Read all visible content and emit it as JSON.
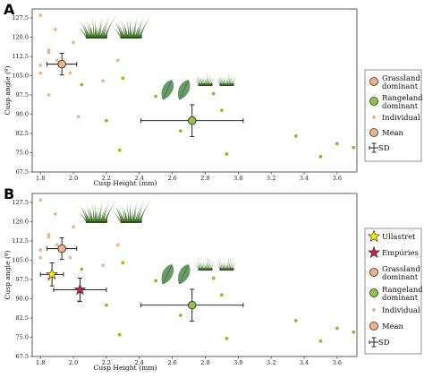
{
  "colors": {
    "grass": "#f2b58e",
    "grass_mean": "#f0b189",
    "range": "#9bb52c",
    "range_mean": "#8dc63f",
    "ullastret": "#ffea00",
    "empuries": "#c8203f",
    "errbar": "#111111",
    "leaf": "#6a9a68",
    "grass_icon": "#3f6b2f"
  },
  "chart_data": [
    {
      "panel": "A",
      "type": "scatter",
      "xlabel": "Cusp Height (mm)",
      "ylabel": "Cusp angle (º)",
      "xlim": [
        1.75,
        3.72
      ],
      "ylim": [
        67.5,
        131
      ],
      "xticks": [
        "1.8",
        "2.0",
        "2.2",
        "2.4",
        "2.6",
        "2.8",
        "3.0",
        "3.2",
        "3.4",
        "3.6"
      ],
      "yticks": [
        "67.5",
        "75.0",
        "82.5",
        "90.0",
        "97.5",
        "105.0",
        "112.5",
        "120.0",
        "127.5"
      ],
      "series": [
        {
          "name": "Individual",
          "group": "grassland",
          "points": [
            [
              1.8,
              128.5
            ],
            [
              1.8,
              109
            ],
            [
              1.8,
              106
            ],
            [
              1.85,
              115
            ],
            [
              1.85,
              114
            ],
            [
              1.85,
              97.5
            ],
            [
              1.89,
              123
            ],
            [
              1.9,
              111
            ],
            [
              1.98,
              106
            ],
            [
              2.0,
              118
            ],
            [
              2.03,
              89
            ],
            [
              2.18,
              103
            ],
            [
              2.27,
              111
            ]
          ]
        },
        {
          "name": "Individual",
          "group": "rangeland",
          "points": [
            [
              2.05,
              101.5
            ],
            [
              2.2,
              87.5
            ],
            [
              2.28,
              76
            ],
            [
              2.3,
              104
            ],
            [
              2.5,
              97
            ],
            [
              2.65,
              83.5
            ],
            [
              2.85,
              98
            ],
            [
              2.9,
              91.5
            ],
            [
              2.93,
              74.5
            ],
            [
              3.35,
              81.5
            ],
            [
              3.5,
              73.5
            ],
            [
              3.6,
              78.5
            ],
            [
              3.7,
              77
            ]
          ]
        },
        {
          "name": "Mean",
          "group": "grassland",
          "mean": [
            1.93,
            109.5
          ],
          "sd_x": 0.09,
          "sd_y": 4.2
        },
        {
          "name": "Mean",
          "group": "rangeland",
          "mean": [
            2.72,
            87.5
          ],
          "sd_x": 0.31,
          "sd_y": 6.2
        }
      ]
    },
    {
      "panel": "B",
      "type": "scatter",
      "xlabel": "Cusp Height (mm)",
      "ylabel": "Cusp angle (º)",
      "xlim": [
        1.75,
        3.72
      ],
      "ylim": [
        67.5,
        131
      ],
      "xticks": [
        "1.8",
        "2.0",
        "2.2",
        "2.4",
        "2.6",
        "2.8",
        "3.0",
        "3.2",
        "3.4",
        "3.6"
      ],
      "yticks": [
        "67.5",
        "75.0",
        "82.5",
        "90.0",
        "97.5",
        "105.0",
        "112.5",
        "120.0",
        "127.5"
      ],
      "series": [
        {
          "name": "Individual",
          "group": "grassland",
          "points": [
            [
              1.8,
              128.5
            ],
            [
              1.8,
              109
            ],
            [
              1.8,
              106
            ],
            [
              1.85,
              115
            ],
            [
              1.85,
              114
            ],
            [
              1.85,
              97.5
            ],
            [
              1.89,
              123
            ],
            [
              1.9,
              111
            ],
            [
              1.98,
              106
            ],
            [
              2.0,
              118
            ],
            [
              2.03,
              89
            ],
            [
              2.18,
              103
            ],
            [
              2.27,
              111
            ]
          ]
        },
        {
          "name": "Individual",
          "group": "rangeland",
          "points": [
            [
              2.05,
              101.5
            ],
            [
              2.2,
              87.5
            ],
            [
              2.28,
              76
            ],
            [
              2.3,
              104
            ],
            [
              2.5,
              97
            ],
            [
              2.65,
              83.5
            ],
            [
              2.85,
              98
            ],
            [
              2.9,
              91.5
            ],
            [
              2.93,
              74.5
            ],
            [
              3.35,
              81.5
            ],
            [
              3.5,
              73.5
            ],
            [
              3.6,
              78.5
            ],
            [
              3.7,
              77
            ]
          ]
        },
        {
          "name": "Mean",
          "group": "grassland",
          "mean": [
            1.93,
            109.5
          ],
          "sd_x": 0.09,
          "sd_y": 4.2
        },
        {
          "name": "Mean",
          "group": "rangeland",
          "mean": [
            2.72,
            87.5
          ],
          "sd_x": 0.31,
          "sd_y": 6.2
        },
        {
          "name": "Ullastret",
          "group": "site",
          "mean": [
            1.87,
            99.5
          ],
          "sd_x": 0.07,
          "sd_y": 4.5
        },
        {
          "name": "Empúries",
          "group": "site",
          "mean": [
            2.04,
            93.5
          ],
          "sd_x": 0.16,
          "sd_y": 4.5
        }
      ]
    }
  ],
  "legend_a": [
    {
      "kind": "grass_mean",
      "label": [
        "Grassland",
        "dominant"
      ]
    },
    {
      "kind": "range_mean",
      "label": [
        "Rangeland",
        "dominant"
      ]
    },
    {
      "kind": "individual",
      "label": [
        "Individual"
      ]
    },
    {
      "kind": "mean",
      "label": [
        "Mean"
      ]
    },
    {
      "kind": "sd",
      "label": [
        "SD"
      ]
    }
  ],
  "legend_b": [
    {
      "kind": "ullastret",
      "label": [
        "Ullastret"
      ]
    },
    {
      "kind": "empuries",
      "label": [
        "Empúries"
      ]
    },
    {
      "kind": "grass_mean",
      "label": [
        "Grassland",
        "dominant"
      ]
    },
    {
      "kind": "range_mean",
      "label": [
        "Rangeland",
        "dominant"
      ]
    },
    {
      "kind": "individual",
      "label": [
        "Individual"
      ]
    },
    {
      "kind": "mean",
      "label": [
        "Mean"
      ]
    },
    {
      "kind": "sd",
      "label": [
        "SD"
      ]
    }
  ]
}
